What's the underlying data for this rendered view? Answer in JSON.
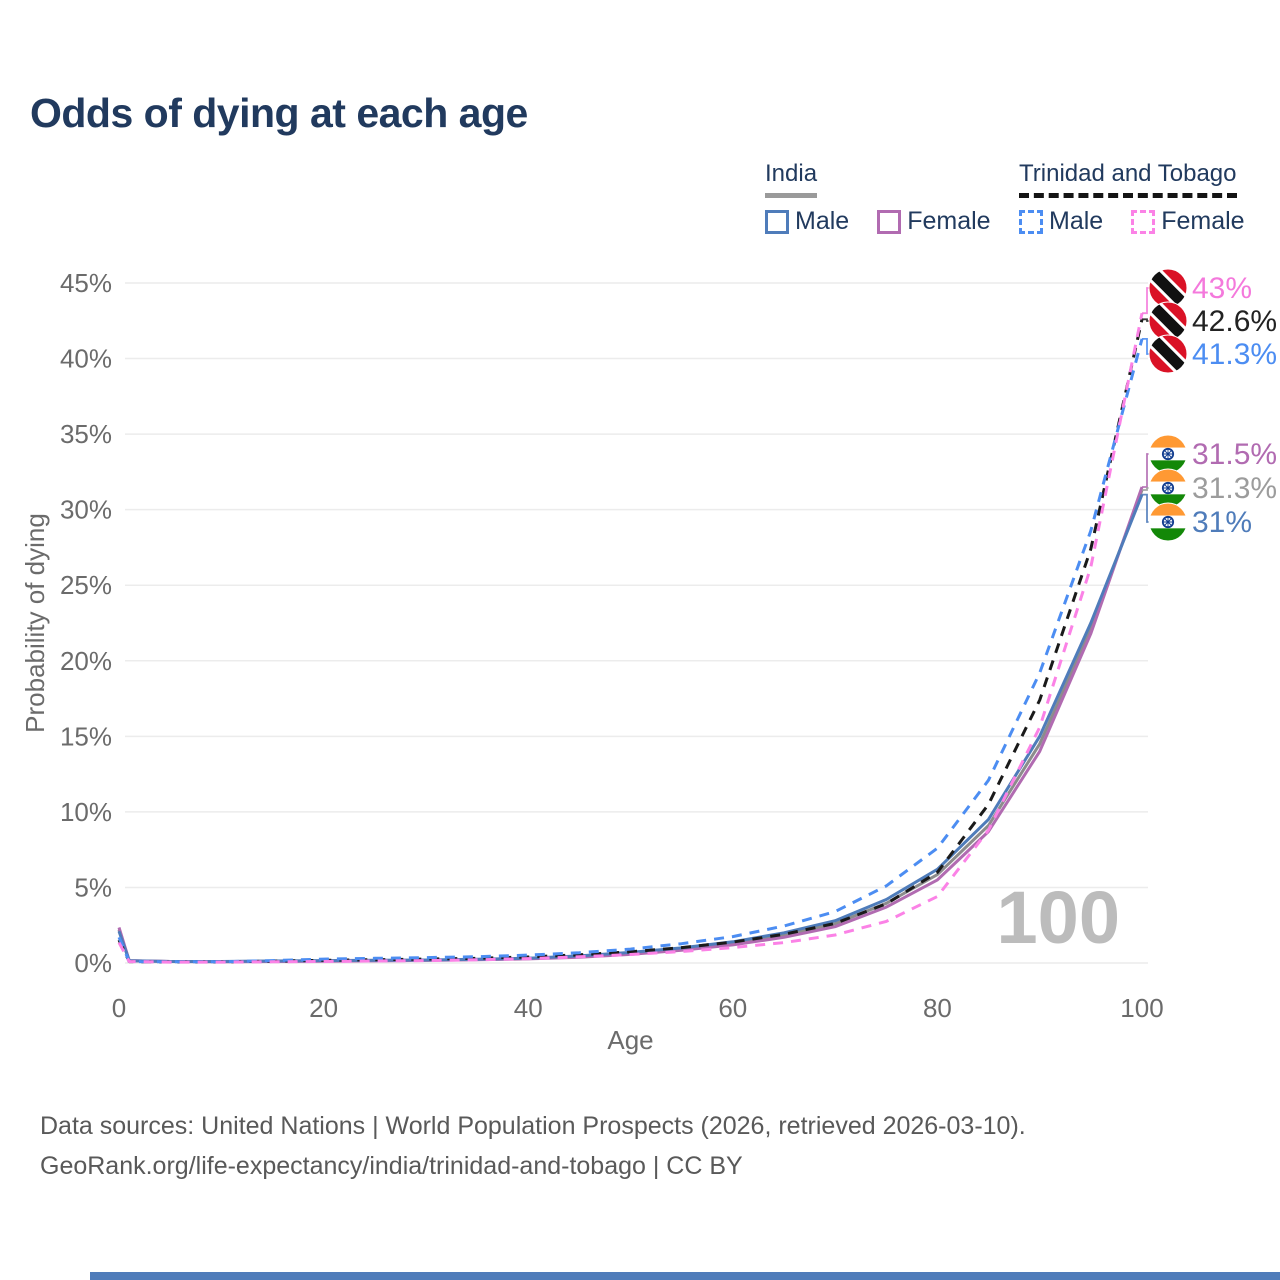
{
  "title": "Odds of dying at each age",
  "legend": {
    "india": {
      "label": "India",
      "male": "Male",
      "female": "Female"
    },
    "tt": {
      "label": "Trinidad and Tobago",
      "male": "Male",
      "female": "Female"
    }
  },
  "watermark": "100",
  "footer": {
    "line1": "Data sources: United Nations | World Population Prospects (2026, retrieved 2026-03-10).",
    "line2": "GeoRank.org/life-expectancy/india/trinidad-and-tobago | CC BY"
  },
  "colors": {
    "title": "#213a5e",
    "india_male": "#4f7cba",
    "india_female": "#b16bb1",
    "india_average": "#8c8c8c",
    "tt_male": "#4c8df2",
    "tt_female": "#fb82e6",
    "tt_average": "#1a1a1a",
    "gridline": "#ececec",
    "axis_text": "#6b6b6b",
    "watermark": "#bcbcbc"
  },
  "flags": {
    "india": {
      "saffron": "#ff9933",
      "white": "#ffffff",
      "green": "#138808",
      "chakra": "#123d8f"
    },
    "tt": {
      "red": "#da1226",
      "black": "#111111",
      "white": "#ffffff"
    }
  },
  "chart_data": {
    "type": "line",
    "title": "Odds of dying at each age",
    "xlabel": "Age",
    "ylabel": "Probability of dying",
    "xlim": [
      0,
      100
    ],
    "ylim": [
      0,
      45
    ],
    "xticks": [
      0,
      20,
      40,
      60,
      80,
      100
    ],
    "yticks": [
      0,
      5,
      10,
      15,
      20,
      25,
      30,
      35,
      40,
      45
    ],
    "grid": "horizontal",
    "legend_position": "top-right",
    "x": [
      0,
      1,
      5,
      10,
      15,
      20,
      25,
      30,
      35,
      40,
      45,
      50,
      55,
      60,
      65,
      70,
      75,
      80,
      85,
      90,
      95,
      100
    ],
    "series": [
      {
        "id": "india_average",
        "name": "India Average",
        "color": "#8c8c8c",
        "dashed": false,
        "values": [
          2.22,
          0.155,
          0.1,
          0.09,
          0.115,
          0.14,
          0.16,
          0.185,
          0.23,
          0.3,
          0.43,
          0.64,
          0.93,
          1.3,
          1.85,
          2.6,
          3.95,
          5.85,
          9.1,
          14.5,
          22.1,
          31.3
        ]
      },
      {
        "id": "india_female",
        "name": "India Female",
        "color": "#b16bb1",
        "dashed": false,
        "values": [
          2.35,
          0.16,
          0.1,
          0.08,
          0.1,
          0.12,
          0.14,
          0.17,
          0.21,
          0.27,
          0.38,
          0.57,
          0.85,
          1.2,
          1.7,
          2.4,
          3.7,
          5.5,
          8.7,
          14.0,
          21.8,
          31.5
        ]
      },
      {
        "id": "india_male",
        "name": "India Male",
        "color": "#4f7cba",
        "dashed": false,
        "values": [
          2.1,
          0.15,
          0.1,
          0.1,
          0.13,
          0.16,
          0.18,
          0.2,
          0.25,
          0.32,
          0.47,
          0.7,
          1.0,
          1.4,
          2.0,
          2.8,
          4.2,
          6.2,
          9.5,
          15.0,
          22.5,
          31.0
        ]
      },
      {
        "id": "tt_average",
        "name": "Trinidad and Tobago Average",
        "color": "#1a1a1a",
        "dashed": true,
        "values": [
          1.52,
          0.095,
          0.07,
          0.07,
          0.12,
          0.18,
          0.22,
          0.26,
          0.31,
          0.4,
          0.54,
          0.74,
          1.02,
          1.38,
          1.9,
          2.62,
          3.92,
          6.0,
          10.5,
          17.4,
          27.4,
          42.6
        ]
      },
      {
        "id": "tt_male",
        "name": "Trinidad and Tobago Male",
        "color": "#4c8df2",
        "dashed": true,
        "values": [
          1.7,
          0.1,
          0.08,
          0.08,
          0.16,
          0.26,
          0.31,
          0.36,
          0.42,
          0.52,
          0.68,
          0.92,
          1.28,
          1.75,
          2.45,
          3.4,
          5.1,
          7.6,
          12.1,
          19.2,
          28.6,
          41.3
        ]
      },
      {
        "id": "tt_female",
        "name": "Trinidad and Tobago Female",
        "color": "#fb82e6",
        "dashed": true,
        "values": [
          1.35,
          0.09,
          0.06,
          0.06,
          0.08,
          0.1,
          0.13,
          0.16,
          0.21,
          0.29,
          0.41,
          0.56,
          0.76,
          1.02,
          1.35,
          1.85,
          2.75,
          4.4,
          8.8,
          15.6,
          26.2,
          43.0
        ]
      }
    ],
    "end_labels": [
      {
        "series": "tt_female",
        "text": "43%",
        "value": 43.0,
        "color": "#f479dc",
        "flag": "tt"
      },
      {
        "series": "tt_average",
        "text": "42.6%",
        "value": 42.6,
        "color": "#222222",
        "flag": "tt"
      },
      {
        "series": "tt_male",
        "text": "41.3%",
        "value": 41.3,
        "color": "#4c8df2",
        "flag": "tt"
      },
      {
        "series": "india_female",
        "text": "31.5%",
        "value": 31.5,
        "color": "#b16bb1",
        "flag": "india"
      },
      {
        "series": "india_average",
        "text": "31.3%",
        "value": 31.3,
        "color": "#9c9c9c",
        "flag": "india"
      },
      {
        "series": "india_male",
        "text": "31%",
        "value": 31.0,
        "color": "#4f7cba",
        "flag": "india"
      }
    ]
  }
}
